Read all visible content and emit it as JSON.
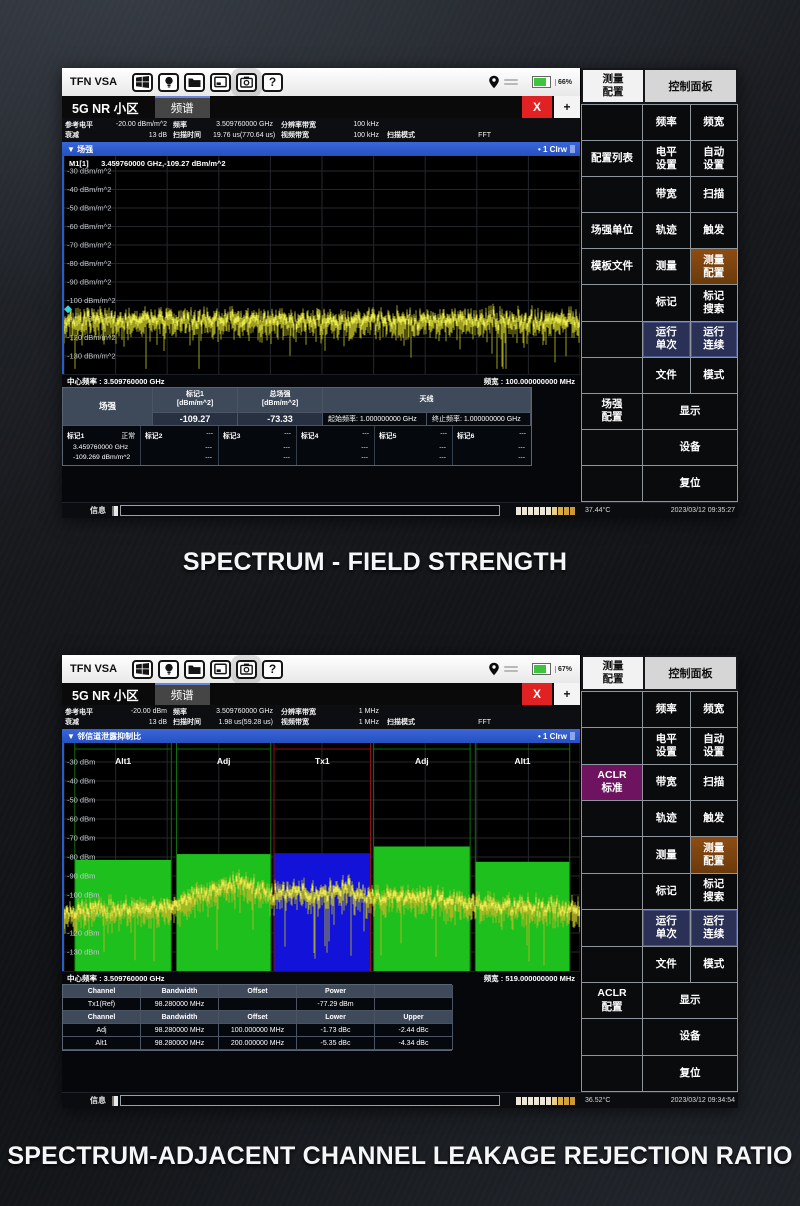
{
  "captions": {
    "first": "SPECTRUM - FIELD STRENGTH",
    "second": "SPECTRUM-ADJACENT CHANNEL LEAKAGE REJECTION RATIO"
  },
  "colors": {
    "accent_blue": "#2f5bd0",
    "trace_yellow": "#d9d93a",
    "bar_green": "#1ec01e",
    "bar_blue": "#1212d8",
    "close_red": "#e22222",
    "highlight_brown": "#7d430f",
    "highlight_navy": "#2b3156",
    "highlight_purple": "#6d1360",
    "table_header": "#3e4a5a"
  },
  "segment_colors": [
    "#ece6d8",
    "#ece6d8",
    "#ece6d8",
    "#ece6d8",
    "#ece6d8",
    "#ece6d8",
    "#e6cf8a",
    "#d9ab45",
    "#d3a238",
    "#cc9a30"
  ],
  "toolbar_icons": [
    "windows-icon",
    "bulb-icon",
    "folder-icon",
    "display-icon",
    "camera-icon",
    "help-icon"
  ],
  "shot1": {
    "app_title": "TFN VSA",
    "battery": "66%",
    "tabs": {
      "home": "5G NR 小区",
      "active": "频谱",
      "close": "X",
      "add": "+"
    },
    "settings": {
      "r1": [
        {
          "l": "参考电平",
          "v": "-20.00 dBm/m^2"
        },
        {
          "l": "频率",
          "v": "3.509760000 GHz"
        },
        {
          "l": "分辨率带宽",
          "v": "100 kHz"
        },
        {
          "l": "",
          "v": ""
        }
      ],
      "r2": [
        {
          "l": "衰减",
          "v": "13 dB"
        },
        {
          "l": "扫描时间",
          "v": "19.76 us(770.64 us)"
        },
        {
          "l": "视频带宽",
          "v": "100 kHz"
        },
        {
          "l": "扫描模式",
          "v": "FFT"
        }
      ]
    },
    "view_title": "▼ 场强",
    "trace_tag": "• 1 Clrw",
    "marker_readout": "M1[1]      3.459760000 GHz,-109.27 dBm/m^2",
    "center_freq": "中心频率 : 3.509760000 GHz",
    "span": "频宽 : 100.000000000 MHz",
    "table": {
      "corner": "场强",
      "col1_h1": "标记1",
      "col1_h2": "[dBm/m^2]",
      "col1_v": "-109.27",
      "col2_h1": "总场强",
      "col2_h2": "[dBm/m^2]",
      "col2_v": "-73.33",
      "antenna_h": "天线",
      "antenna_start": "起始频率: 1.000000000 GHz",
      "antenna_stop": "终止频率: 1.000000000 GHz",
      "markers": [
        {
          "n": "标记1",
          "s": "正常",
          "f": "3.459760000 GHz",
          "l": "-109.269 dBm/m^2"
        },
        {
          "n": "标记2",
          "s": "---",
          "f": "---",
          "l": "---"
        },
        {
          "n": "标记3",
          "s": "---",
          "f": "---",
          "l": "---"
        },
        {
          "n": "标记4",
          "s": "---",
          "f": "---",
          "l": "---"
        },
        {
          "n": "标记5",
          "s": "---",
          "f": "---",
          "l": "---"
        },
        {
          "n": "标记6",
          "s": "---",
          "f": "---",
          "l": "---"
        }
      ]
    },
    "status": {
      "info": "信息",
      "temp": "37.44°C",
      "datetime": "2023/03/12 09:35:27"
    },
    "panel": {
      "header_left": "测量\n配置",
      "header_right": "控制面板",
      "rows": [
        {
          "left": "",
          "a": "频率",
          "b": "频宽"
        },
        {
          "left": "配置列表",
          "a": "电平\n设置",
          "b": "自动\n设置"
        },
        {
          "left": "",
          "a": "带宽",
          "b": "扫描"
        },
        {
          "left": "场强单位",
          "a": "轨迹",
          "b": "触发"
        },
        {
          "left": "模板文件",
          "a": "测量",
          "b": "测量\n配置",
          "b_style": "brown"
        },
        {
          "left": "",
          "a": "标记",
          "b": "标记\n搜索"
        },
        {
          "left": "",
          "a": "运行\n单次",
          "b": "运行\n连续",
          "a_style": "navy",
          "b_style": "navy"
        },
        {
          "left": "",
          "a": "文件",
          "b": "模式"
        },
        {
          "left": "场强\n配置",
          "wide": "显示"
        },
        {
          "left": "",
          "wide": "设备"
        },
        {
          "left": "",
          "wide": "复位"
        }
      ]
    }
  },
  "shot2": {
    "app_title": "TFN VSA",
    "battery": "67%",
    "tabs": {
      "home": "5G NR 小区",
      "active": "频谱",
      "close": "X",
      "add": "+"
    },
    "settings": {
      "r1": [
        {
          "l": "参考电平",
          "v": "-20.00 dBm"
        },
        {
          "l": "频率",
          "v": "3.509760000 GHz"
        },
        {
          "l": "分辨率带宽",
          "v": "1 MHz"
        },
        {
          "l": "",
          "v": ""
        }
      ],
      "r2": [
        {
          "l": "衰减",
          "v": "13 dB"
        },
        {
          "l": "扫描时间",
          "v": "1.98 us(59.28 us)"
        },
        {
          "l": "视频带宽",
          "v": "1 MHz"
        },
        {
          "l": "扫描模式",
          "v": "FFT"
        }
      ]
    },
    "view_title": "▼ 邻信道泄露抑制比",
    "trace_tag": "• 1 Clrw",
    "center_freq": "中心频率 : 3.509760000 GHz",
    "span": "频宽 : 519.000000000 MHz",
    "table": {
      "rows": [
        {
          "h": true,
          "c": [
            "Channel",
            "Bandwidth",
            "Offset",
            "Power",
            ""
          ]
        },
        {
          "h": false,
          "c": [
            "Tx1(Ref)",
            "98.280000 MHz",
            "",
            "-77.29 dBm",
            ""
          ]
        },
        {
          "h": true,
          "c": [
            "Channel",
            "Bandwidth",
            "Offset",
            "Lower",
            "Upper"
          ]
        },
        {
          "h": false,
          "c": [
            "Adj",
            "98.280000 MHz",
            "100.000000 MHz",
            "-1.73 dBc",
            "-2.44 dBc"
          ]
        },
        {
          "h": false,
          "c": [
            "Alt1",
            "98.280000 MHz",
            "200.000000 MHz",
            "-5.35 dBc",
            "-4.34 dBc"
          ]
        }
      ]
    },
    "status": {
      "info": "信息",
      "temp": "36.52°C",
      "datetime": "2023/03/12 09:34:54"
    },
    "panel": {
      "header_left": "测量\n配置",
      "header_right": "控制面板",
      "rows": [
        {
          "left": "",
          "a": "频率",
          "b": "频宽"
        },
        {
          "left": "",
          "a": "电平\n设置",
          "b": "自动\n设置"
        },
        {
          "left": "ACLR\n标准",
          "left_style": "purple",
          "a": "带宽",
          "b": "扫描"
        },
        {
          "left": "",
          "a": "轨迹",
          "b": "触发"
        },
        {
          "left": "",
          "a": "测量",
          "b": "测量\n配置",
          "b_style": "brown"
        },
        {
          "left": "",
          "a": "标记",
          "b": "标记\n搜索"
        },
        {
          "left": "",
          "a": "运行\n单次",
          "b": "运行\n连续",
          "a_style": "navy",
          "b_style": "navy"
        },
        {
          "left": "",
          "a": "文件",
          "b": "模式"
        },
        {
          "left": "ACLR\n配置",
          "wide": "显示"
        },
        {
          "left": "",
          "wide": "设备"
        },
        {
          "left": "",
          "wide": "复位"
        }
      ]
    }
  },
  "chart_data": [
    {
      "type": "line",
      "title": "场强 (Field Strength)",
      "ylabel": "dBm/m^2",
      "ylim": [
        -130,
        -30
      ],
      "y_ticks": [
        "-30 dBm/m^2",
        "-40 dBm/m^2",
        "-50 dBm/m^2",
        "-60 dBm/m^2",
        "-70 dBm/m^2",
        "-80 dBm/m^2",
        "-90 dBm/m^2",
        "-100 dBm/m^2",
        "-110 dBm/m^2",
        "-120 dBm/m^2",
        "-130 dBm/m^2"
      ],
      "center_freq_ghz": 3.50976,
      "span_mhz": 100,
      "noise_floor": -110,
      "noise_amp": 5,
      "spike_prob": 0.05,
      "envelope": [
        [
          0,
          -110
        ],
        [
          1,
          -110
        ]
      ],
      "marker": {
        "name": "M1[1]",
        "freq_ghz": 3.45976,
        "level_dbm_m2": -109.27
      },
      "grid": true,
      "legend_position": "none"
    },
    {
      "type": "area+line",
      "title": "邻信道泄露抑制比 (ACLR)",
      "ylabel": "dBm",
      "ylim": [
        -130,
        -30
      ],
      "y_ticks": [
        "-30 dBm",
        "-40 dBm",
        "-50 dBm",
        "-60 dBm",
        "-70 dBm",
        "-80 dBm",
        "-90 dBm",
        "-100 dBm",
        "-110 dBm",
        "-120 dBm",
        "-130 dBm"
      ],
      "center_freq_ghz": 3.50976,
      "span_mhz": 519,
      "channels": [
        {
          "label": "Alt1",
          "x0": 0.021,
          "x1": 0.208,
          "level_dbm": -81.5,
          "color": "green"
        },
        {
          "label": "Adj",
          "x0": 0.218,
          "x1": 0.401,
          "level_dbm": -78.5,
          "color": "green"
        },
        {
          "label": "Tx1",
          "x0": 0.407,
          "x1": 0.594,
          "level_dbm": -78.0,
          "color": "blue"
        },
        {
          "label": "Adj",
          "x0": 0.6,
          "x1": 0.787,
          "level_dbm": -74.5,
          "color": "green"
        },
        {
          "label": "Alt1",
          "x0": 0.797,
          "x1": 0.98,
          "level_dbm": -82.5,
          "color": "green"
        }
      ],
      "envelope": [
        [
          0,
          -108
        ],
        [
          0.19,
          -106
        ],
        [
          0.27,
          -99
        ],
        [
          0.34,
          -93
        ],
        [
          0.4,
          -99
        ],
        [
          0.45,
          -97
        ],
        [
          0.5,
          -99
        ],
        [
          0.55,
          -96
        ],
        [
          0.6,
          -100
        ],
        [
          0.7,
          -101
        ],
        [
          0.8,
          -104
        ],
        [
          1,
          -107
        ]
      ],
      "noise_amp": 4.5,
      "spike_prob": 0.05,
      "tx_power": "-77.29 dBm",
      "grid": true,
      "legend_position": "none"
    }
  ]
}
